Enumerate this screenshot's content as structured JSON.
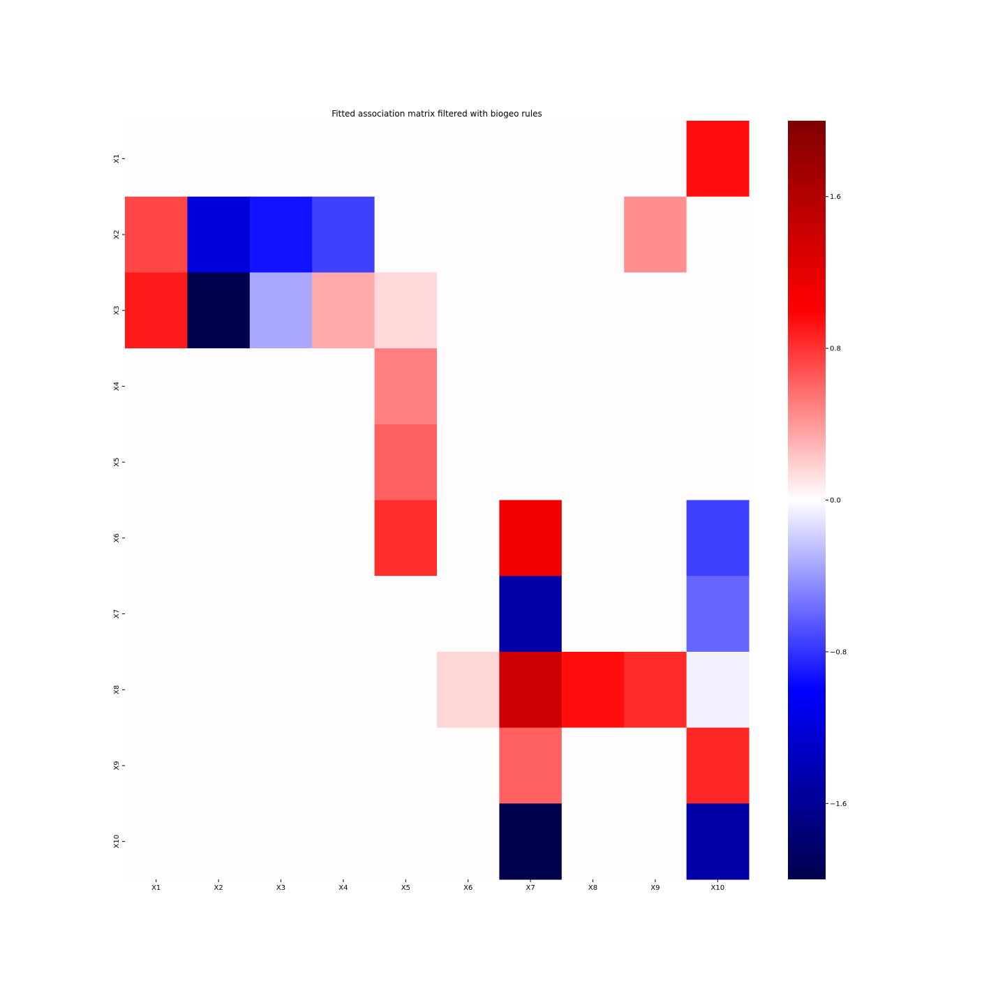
{
  "chart_data": {
    "type": "heatmap",
    "title": "Fitted association matrix filtered with biogeo rules",
    "x_categories": [
      "X1",
      "X2",
      "X3",
      "X4",
      "X5",
      "X6",
      "X7",
      "X8",
      "X9",
      "X10"
    ],
    "y_categories": [
      "X1",
      "X2",
      "X3",
      "X4",
      "X5",
      "X6",
      "X7",
      "X8",
      "X9",
      "X10"
    ],
    "values": [
      [
        0,
        0,
        0,
        0,
        0,
        0,
        0,
        0,
        0,
        0.95
      ],
      [
        0.72,
        -1.2,
        -0.93,
        -0.75,
        0,
        0,
        0,
        0,
        0.44,
        0
      ],
      [
        0.9,
        -2.0,
        -0.34,
        0.33,
        0.15,
        0,
        0,
        0,
        0,
        0
      ],
      [
        0,
        0,
        0,
        0,
        0.5,
        0,
        0,
        0,
        0,
        0
      ],
      [
        0,
        0,
        0,
        0,
        0.62,
        0,
        0,
        0,
        0,
        0
      ],
      [
        0,
        0,
        0,
        0,
        0.82,
        0,
        1.12,
        0,
        0,
        -0.75
      ],
      [
        0,
        0,
        0,
        0,
        0,
        0,
        -1.5,
        0,
        0,
        -0.6
      ],
      [
        0,
        0,
        0,
        0,
        0,
        0.16,
        1.4,
        0.95,
        0.83,
        -0.05
      ],
      [
        0,
        0,
        0,
        0,
        0,
        0,
        0.62,
        0,
        0,
        0.85
      ],
      [
        0,
        0,
        0,
        0,
        0,
        0,
        -2.0,
        0,
        0,
        -1.5
      ]
    ],
    "colormap": "seismic",
    "vmin": -2.0,
    "vmax": 2.0,
    "colorbar_ticks": [
      1.6,
      0.8,
      0.0,
      -0.8,
      -1.6
    ],
    "colorbar_tick_labels": [
      "1.6",
      "0.8",
      "0.0",
      "−0.8",
      "−1.6"
    ]
  }
}
